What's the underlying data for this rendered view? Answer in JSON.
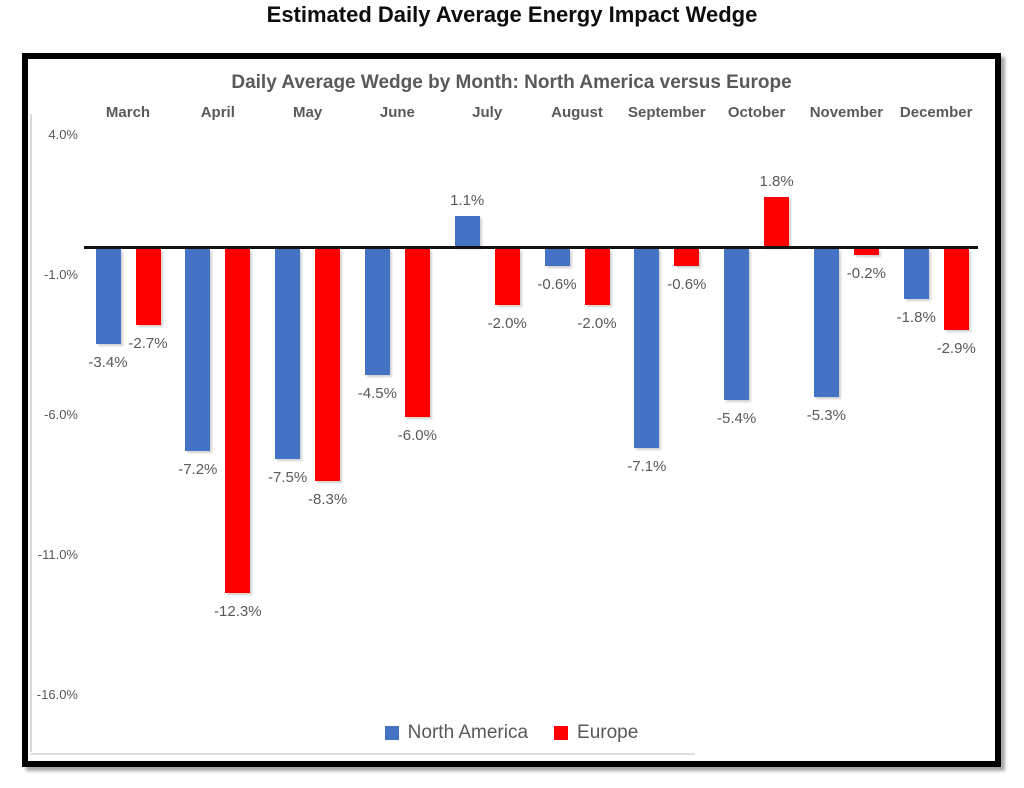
{
  "page_title": "Estimated Daily Average Energy Impact Wedge",
  "chart_data": {
    "type": "bar",
    "title": "Daily Average Wedge by Month: North America versus Europe",
    "categories": [
      "March",
      "April",
      "May",
      "June",
      "July",
      "August",
      "September",
      "October",
      "November",
      "December"
    ],
    "series": [
      {
        "name": "North America",
        "color": "#4472C4",
        "values": [
          -3.4,
          -7.2,
          -7.5,
          -4.5,
          1.1,
          -0.6,
          -7.1,
          -5.4,
          -5.3,
          -1.8
        ],
        "labels": [
          "-3.4%",
          "-7.2%",
          "-7.5%",
          "-4.5%",
          "1.1%",
          "-0.6%",
          "-7.1%",
          "-5.4%",
          "-5.3%",
          "-1.8%"
        ]
      },
      {
        "name": "Europe",
        "color": "#FF0000",
        "values": [
          -2.7,
          -12.3,
          -8.3,
          -6.0,
          -2.0,
          -2.0,
          -0.6,
          1.8,
          -0.2,
          -2.9
        ],
        "labels": [
          "-2.7%",
          "-12.3%",
          "-8.3%",
          "-6.0%",
          "-2.0%",
          "-2.0%",
          "-0.6%",
          "1.8%",
          "-0.2%",
          "-2.9%"
        ]
      }
    ],
    "y_axis": {
      "ticks": [
        {
          "label": "4.0%",
          "value": 4
        },
        {
          "label": "-1.0%",
          "value": -1
        },
        {
          "label": "-6.0%",
          "value": -6
        },
        {
          "label": "-11.0%",
          "value": -11
        },
        {
          "label": "-16.0%",
          "value": -16
        }
      ],
      "range": [
        -16,
        4
      ]
    },
    "legend": {
      "position": "bottom",
      "entries": [
        "North America",
        "Europe"
      ]
    },
    "grid": false
  },
  "colors": {
    "north_america": "#4472C4",
    "europe": "#FF0000",
    "text_gray": "#595959",
    "zero_line": "#111111",
    "frame_border": "#000000"
  }
}
